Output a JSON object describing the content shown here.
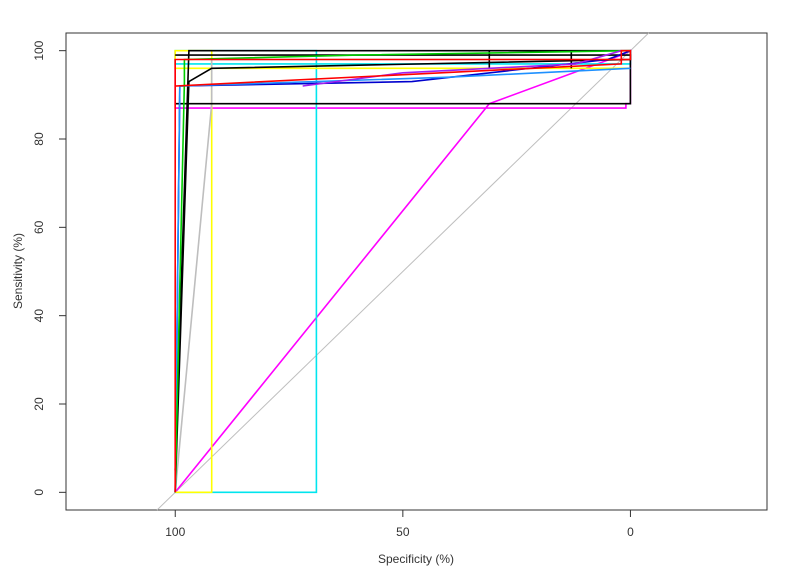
{
  "chart_data": {
    "type": "line",
    "title": "",
    "xlabel": "Specificity (%)",
    "ylabel": "Sensitivity (%)",
    "x_reversed": true,
    "xlim": [
      124,
      -30
    ],
    "ylim": [
      -4,
      104
    ],
    "x_ticks": [
      100,
      50,
      0
    ],
    "y_ticks": [
      0,
      20,
      40,
      60,
      80,
      100
    ],
    "grid": false,
    "legend": "none",
    "reference_line": {
      "points": [
        [
          104,
          -4
        ],
        [
          -4,
          104
        ]
      ],
      "color": "#bebebe"
    },
    "series": [
      {
        "color": "#ff00ff",
        "points": [
          [
            100,
            0
          ],
          [
            31,
            88
          ],
          [
            2,
            99
          ],
          [
            0,
            100
          ],
          [
            0,
            88
          ],
          [
            1,
            88
          ],
          [
            1,
            87
          ],
          [
            100,
            87
          ],
          [
            100,
            100
          ]
        ]
      },
      {
        "color": "#00e5ee",
        "points": [
          [
            100,
            0
          ],
          [
            69,
            0
          ],
          [
            69,
            100
          ],
          [
            100,
            100
          ],
          [
            100,
            97
          ],
          [
            0,
            97
          ],
          [
            0,
            100
          ]
        ]
      },
      {
        "color": "#ffff00",
        "points": [
          [
            100,
            0
          ],
          [
            92,
            0
          ],
          [
            92,
            100
          ],
          [
            100,
            100
          ],
          [
            100,
            96
          ],
          [
            0,
            96
          ]
        ]
      },
      {
        "color": "#bebebe",
        "points": [
          [
            100,
            0
          ],
          [
            92,
            88
          ],
          [
            92,
            98
          ],
          [
            0,
            98
          ]
        ]
      },
      {
        "color": "#000000",
        "points": [
          [
            100,
            0
          ],
          [
            97,
            93
          ],
          [
            92,
            96
          ],
          [
            0,
            98
          ],
          [
            0,
            99
          ],
          [
            100,
            99
          ]
        ]
      },
      {
        "color": "#000000",
        "points": [
          [
            100,
            88
          ],
          [
            0,
            88
          ],
          [
            0,
            100
          ],
          [
            97,
            100
          ],
          [
            100,
            5
          ]
        ]
      },
      {
        "color": "#000000",
        "points": [
          [
            31,
            96
          ],
          [
            31,
            100
          ]
        ]
      },
      {
        "color": "#000000",
        "points": [
          [
            13,
            96
          ],
          [
            13,
            100
          ]
        ]
      },
      {
        "color": "#0000cd",
        "points": [
          [
            100,
            0
          ],
          [
            99,
            92
          ],
          [
            48,
            93
          ],
          [
            5,
            98
          ],
          [
            0,
            100
          ]
        ]
      },
      {
        "color": "#1e90ff",
        "points": [
          [
            100,
            0
          ],
          [
            99,
            92
          ],
          [
            40,
            94
          ],
          [
            0,
            96
          ]
        ]
      },
      {
        "color": "#00cd00",
        "points": [
          [
            100,
            0
          ],
          [
            98,
            93
          ],
          [
            98,
            98
          ],
          [
            60,
            99
          ],
          [
            0,
            100
          ]
        ]
      },
      {
        "color": "#a020f0",
        "points": [
          [
            72,
            92
          ],
          [
            50,
            95
          ],
          [
            12,
            97
          ],
          [
            2,
            100
          ]
        ]
      },
      {
        "color": "#ff0000",
        "points": [
          [
            100,
            0
          ],
          [
            100,
            98
          ],
          [
            0,
            98
          ],
          [
            0,
            100
          ],
          [
            2,
            100
          ],
          [
            2,
            97
          ],
          [
            100,
            92
          ],
          [
            100,
            98
          ]
        ]
      }
    ]
  }
}
